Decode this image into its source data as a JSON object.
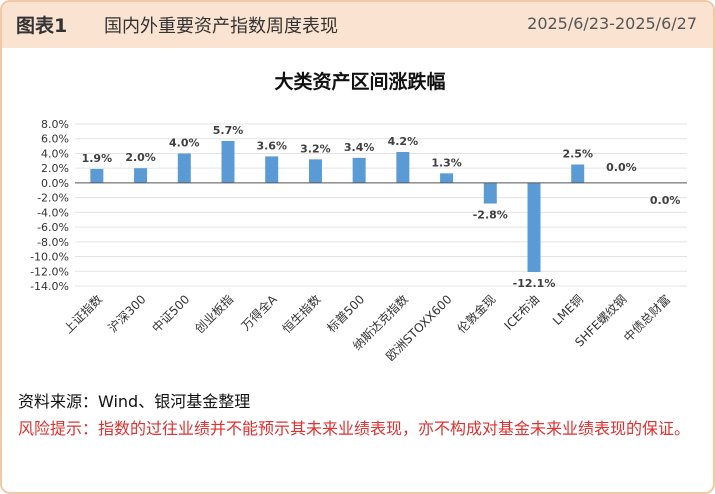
{
  "header": {
    "figure_no": "图表1",
    "title": "国内外重要资产指数周度表现",
    "date_range": "2025/6/23-2025/6/27"
  },
  "chart_data": {
    "type": "bar",
    "title": "大类资产区间涨跌幅",
    "categories": [
      "上证指数",
      "沪深300",
      "中证500",
      "创业板指",
      "万得全A",
      "恒生指数",
      "标普500",
      "纳斯达克指数",
      "欧洲STOXX600",
      "伦敦金现",
      "ICE布油",
      "LME铜",
      "SHFE螺纹钢",
      "中债总财富"
    ],
    "values": [
      1.9,
      2.0,
      4.0,
      5.7,
      3.6,
      3.2,
      3.4,
      4.2,
      1.3,
      -2.8,
      -12.1,
      2.5,
      0.0,
      0.0
    ],
    "data_labels": [
      "1.9%",
      "2.0%",
      "4.0%",
      "5.7%",
      "3.6%",
      "3.2%",
      "3.4%",
      "4.2%",
      "1.3%",
      "-2.8%",
      "-12.1%",
      "2.5%",
      "0.0%",
      "0.0%"
    ],
    "yticks": [
      "8.0%",
      "6.0%",
      "4.0%",
      "2.0%",
      "0.0%",
      "-2.0%",
      "-4.0%",
      "-6.0%",
      "-8.0%",
      "-10.0%",
      "-12.0%",
      "-14.0%"
    ],
    "ylim": [
      -14,
      8
    ],
    "grid": true,
    "legend": "none",
    "bar_color": "#5b9bd5"
  },
  "footer": {
    "source": "资料来源：Wind、银河基金整理",
    "risk": "风险提示：指数的过往业绩并不能预示其未来业绩表现，亦不构成对基金未来业绩表现的保证。"
  }
}
